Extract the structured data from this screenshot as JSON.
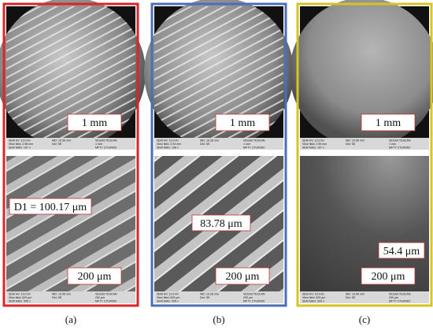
{
  "panels": [
    {
      "caption": "(a)",
      "top": {
        "scale": "1 mm",
        "info": [
          "SEM HV: 10.0 kV",
          "WD: 10.56 mm",
          "VEGA3 TESCAN",
          "View field: 2.98 mm",
          "Det: SE",
          "1 mm",
          "SEM MAG: 107 x",
          "MFTY CTU/KMO"
        ]
      },
      "bottom": {
        "scale": "200 μm",
        "measurement": "D1 = 100.17 μm",
        "info": [
          "SEM HV: 10.0 kV",
          "WD: 10.56 mm",
          "VEGA3 TESCAN",
          "View field: 629 μm",
          "Det: SE",
          "200 μm",
          "SEM MAG: 505 x",
          "MFTY CTU/KMO"
        ]
      }
    },
    {
      "caption": "(b)",
      "top": {
        "scale": "1 mm",
        "info": [
          "SEM HV: 10.0 kV",
          "WD: 10.28 mm",
          "VEGA3 TESCAN",
          "View field: 2.94 mm",
          "Det: SE",
          "1 mm",
          "SEM MAG: 108 x",
          "MFTY CTU/KMO"
        ]
      },
      "bottom": {
        "scale": "200 μm",
        "measurement": "83.78 μm",
        "info": [
          "SEM HV: 10.0 kV",
          "WD: 10.28 mm",
          "VEGA3 TESCAN",
          "View field: 629 μm",
          "Det: SE",
          "200 μm",
          "SEM MAG: 505 x",
          "MFTY CTU/KMO"
        ]
      }
    },
    {
      "caption": "(c)",
      "top": {
        "scale": "1 mm",
        "info": [
          "SEM HV: 10.0 kV",
          "WD: 10.56 mm",
          "VEGA3 TESCAN",
          "View field: 2.95 mm",
          "Det: SE",
          "1 mm",
          "SEM MAG: 107 x",
          "MFTY CTU/KMO"
        ]
      },
      "bottom": {
        "scale": "200 μm",
        "measurement": "54.4 μm",
        "info": [
          "SEM HV: 10.0 kV",
          "WD: 10.56 mm",
          "VEGA3 TESCAN",
          "View field: 629 μm",
          "Det: SE",
          "200 μm",
          "SEM MAG: 505 x",
          "MFTY CTU/KMO"
        ]
      }
    }
  ]
}
